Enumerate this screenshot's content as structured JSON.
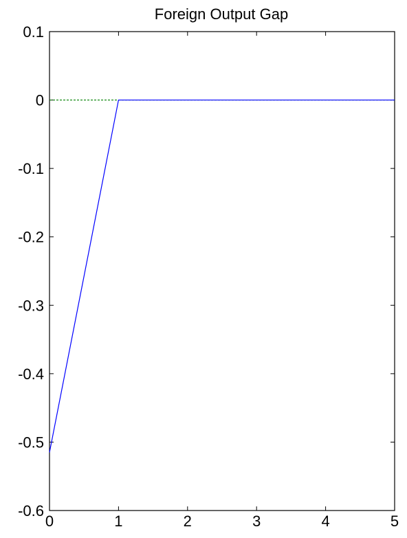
{
  "chart_data": {
    "type": "line",
    "title": "Foreign Output Gap",
    "xlabel": "",
    "ylabel": "",
    "xlim": [
      0,
      5
    ],
    "ylim": [
      -0.6,
      0.1
    ],
    "x_ticks": [
      "0",
      "1",
      "2",
      "3",
      "4",
      "5"
    ],
    "y_ticks": [
      "0.1",
      "0",
      "-0.1",
      "-0.2",
      "-0.3",
      "-0.4",
      "-0.5",
      "-0.6"
    ],
    "grid": false,
    "series": [
      {
        "color": "#0000ff",
        "style": "solid",
        "x": [
          0,
          1,
          2,
          3,
          4,
          5
        ],
        "y": [
          -0.515,
          0,
          0,
          0,
          0,
          0
        ]
      },
      {
        "color": "#008000",
        "style": "dashed",
        "x": [
          0,
          1,
          2,
          3,
          4,
          5
        ],
        "y": [
          0,
          0,
          0,
          0,
          0,
          0
        ]
      }
    ]
  }
}
